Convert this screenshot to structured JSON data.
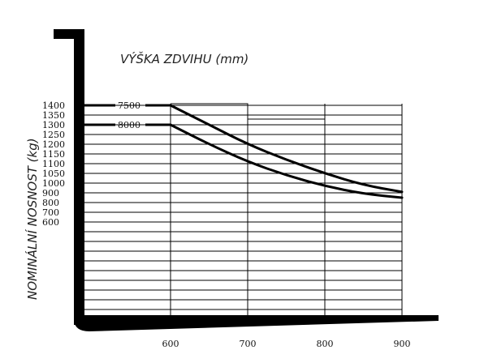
{
  "chart_data": {
    "type": "line",
    "title": "VÝŠKA ZDVIHU (mm)",
    "xlabel": "",
    "ylabel": "NOMINÁLNÍ NOSNOST (kg)",
    "x_ticks": [
      "600",
      "700",
      "800",
      "900"
    ],
    "y_ticks": [
      "1400",
      "1350",
      "1300",
      "1250",
      "1200",
      "1150",
      "1100",
      "1050",
      "1000",
      "900",
      "800",
      "700",
      "600"
    ],
    "grid": true,
    "series": [
      {
        "name": "7500",
        "x": [
          600,
          650,
          700,
          750,
          800,
          850,
          900
        ],
        "y": [
          1400,
          1300,
          1200,
          1120,
          1050,
          990,
          955
        ]
      },
      {
        "name": "8000",
        "x": [
          600,
          650,
          700,
          750,
          800,
          850,
          900
        ],
        "y": [
          1300,
          1200,
          1110,
          1040,
          985,
          945,
          925
        ]
      }
    ],
    "colors": {
      "line": "#000000",
      "grid": "#000000",
      "frame": "#000000"
    }
  }
}
